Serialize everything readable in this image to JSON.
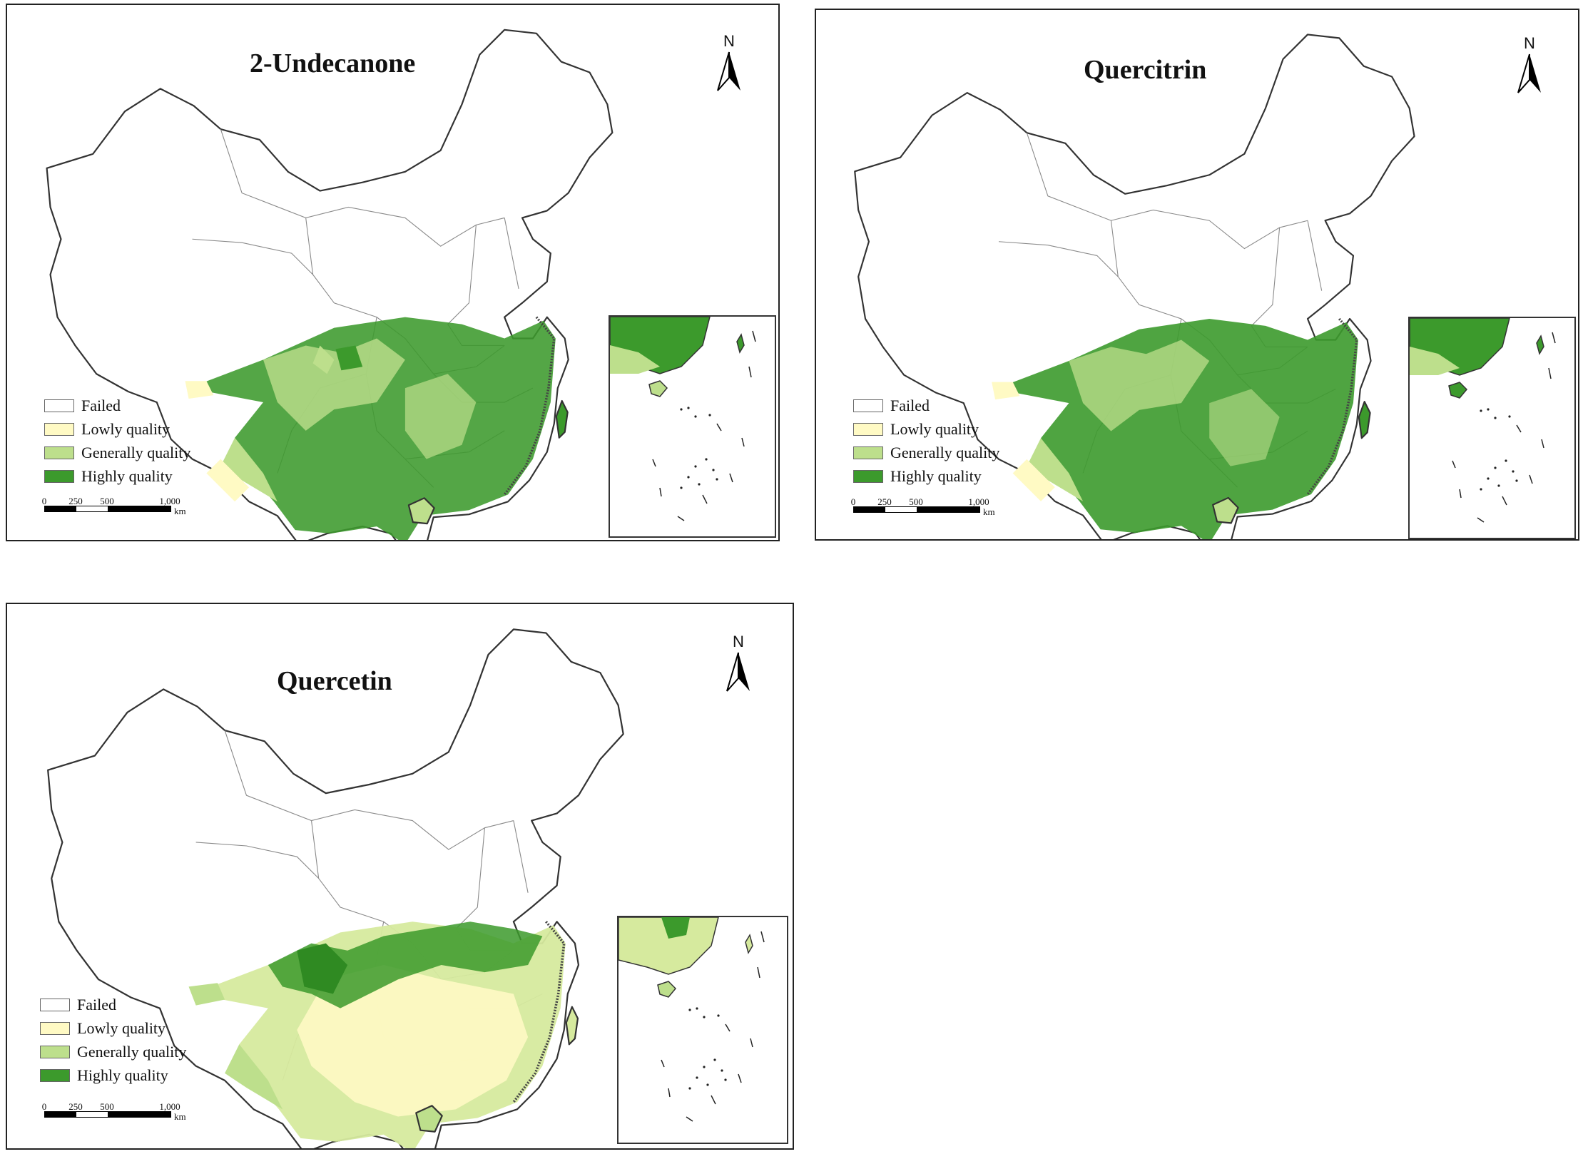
{
  "panels": [
    {
      "title": "2-Undecanone",
      "north_label": "N",
      "legend": [
        {
          "label": "Failed",
          "color": "#ffffff"
        },
        {
          "label": "Lowly quality",
          "color": "#fffac4"
        },
        {
          "label": "Generally quality",
          "color": "#bddf8c"
        },
        {
          "label": "Highly quality",
          "color": "#3c9a2c"
        }
      ],
      "scale": {
        "ticks": [
          "0",
          "250",
          "500",
          "1,000"
        ],
        "unit": "km"
      }
    },
    {
      "title": "Quercitrin",
      "north_label": "N",
      "legend": [
        {
          "label": "Failed",
          "color": "#ffffff"
        },
        {
          "label": "Lowly quality",
          "color": "#fffac4"
        },
        {
          "label": "Generally quality",
          "color": "#bddf8c"
        },
        {
          "label": "Highly quality",
          "color": "#3c9a2c"
        }
      ],
      "scale": {
        "ticks": [
          "0",
          "250",
          "500",
          "1,000"
        ],
        "unit": "km"
      }
    },
    {
      "title": "Quercetin",
      "north_label": "N",
      "legend": [
        {
          "label": "Failed",
          "color": "#ffffff"
        },
        {
          "label": "Lowly quality",
          "color": "#fffac4"
        },
        {
          "label": "Generally quality",
          "color": "#bddf8c"
        },
        {
          "label": "Highly quality",
          "color": "#3c9a2c"
        }
      ],
      "scale": {
        "ticks": [
          "0",
          "250",
          "500",
          "1,000"
        ],
        "unit": "km"
      }
    }
  ]
}
